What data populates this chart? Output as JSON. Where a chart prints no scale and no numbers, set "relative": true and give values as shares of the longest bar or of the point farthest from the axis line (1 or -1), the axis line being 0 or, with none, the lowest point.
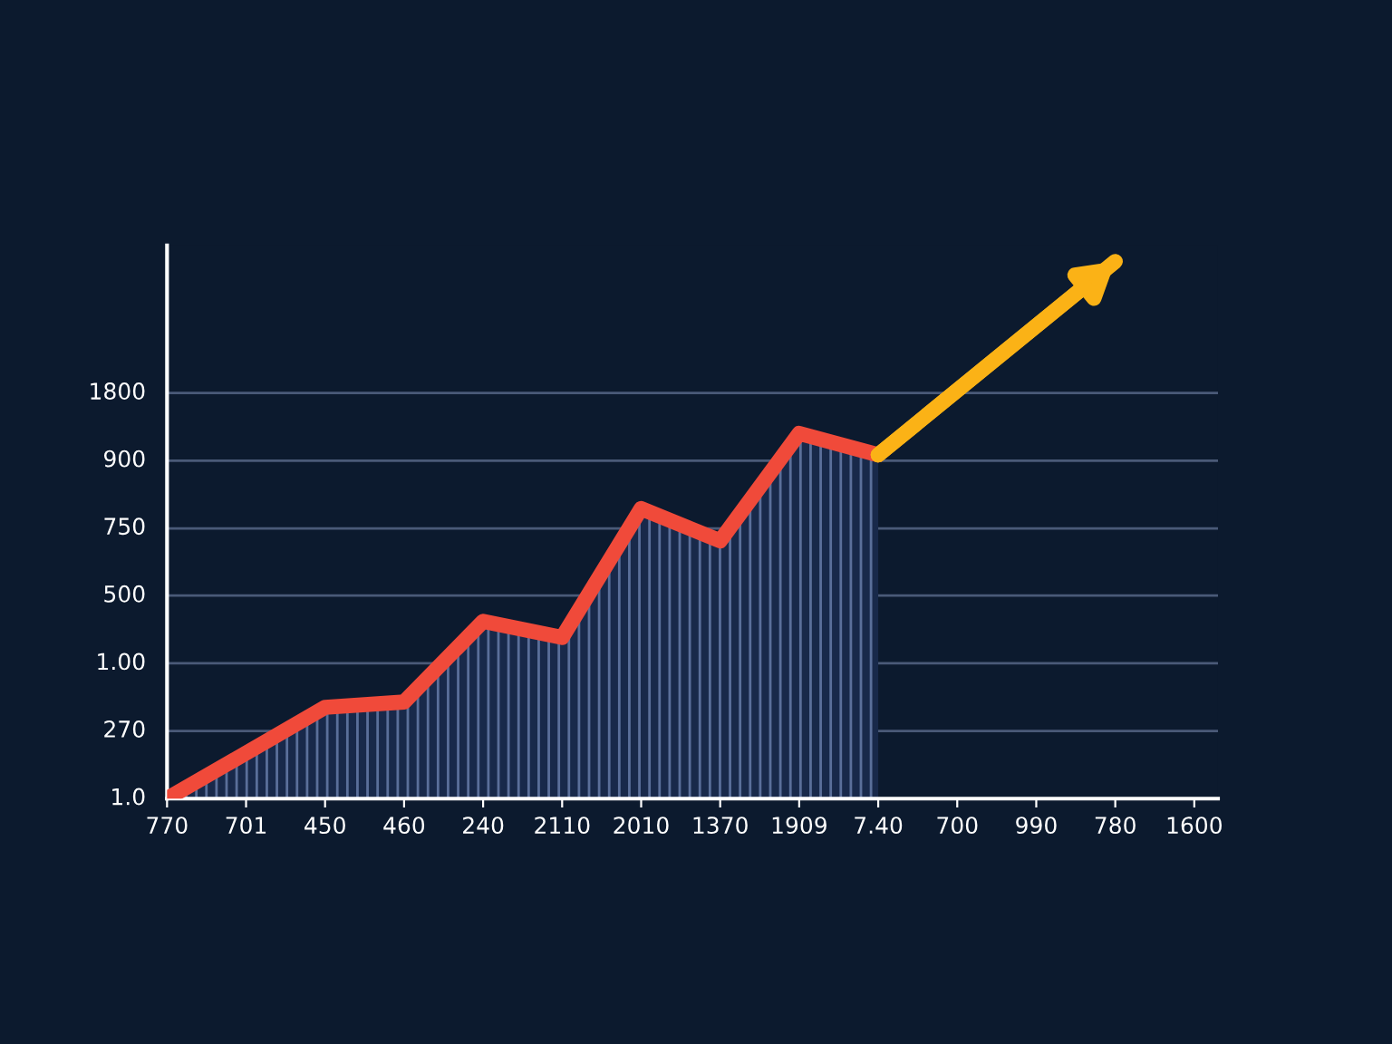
{
  "chart_data": {
    "type": "area",
    "categories": [
      "770",
      "701",
      "450",
      "460",
      "240",
      "2110",
      "2010",
      "1370",
      "1909",
      "7.40",
      "700",
      "990",
      "780",
      "1600"
    ],
    "relative": true,
    "series": [
      {
        "color": "#f04a3a",
        "values": [
          0,
          null,
          0.17,
          0.18,
          0.33,
          0.3,
          0.54,
          0.48,
          0.68,
          0.64,
          null,
          null,
          null,
          null
        ]
      },
      {
        "type": "line",
        "color": "#fbb216",
        "values": [
          null,
          null,
          null,
          null,
          null,
          null,
          null,
          null,
          null,
          0.64,
          null,
          null,
          1.0,
          null
        ]
      }
    ],
    "ref_lines": [
      {
        "axis": "y",
        "value": 0.126,
        "color": "#4a5a78"
      },
      {
        "axis": "y",
        "value": 0.252,
        "color": "#4a5a78"
      },
      {
        "axis": "y",
        "value": 0.378,
        "color": "#4a5a78"
      },
      {
        "axis": "y",
        "value": 0.503,
        "color": "#4a5a78"
      },
      {
        "axis": "y",
        "value": 0.629,
        "color": "#4a5a78"
      },
      {
        "axis": "y",
        "value": 0.755,
        "color": "#4a5a78"
      }
    ],
    "annotations": [
      "1.0",
      "270",
      "1.00",
      "500",
      "750",
      "900",
      "1800"
    ]
  }
}
